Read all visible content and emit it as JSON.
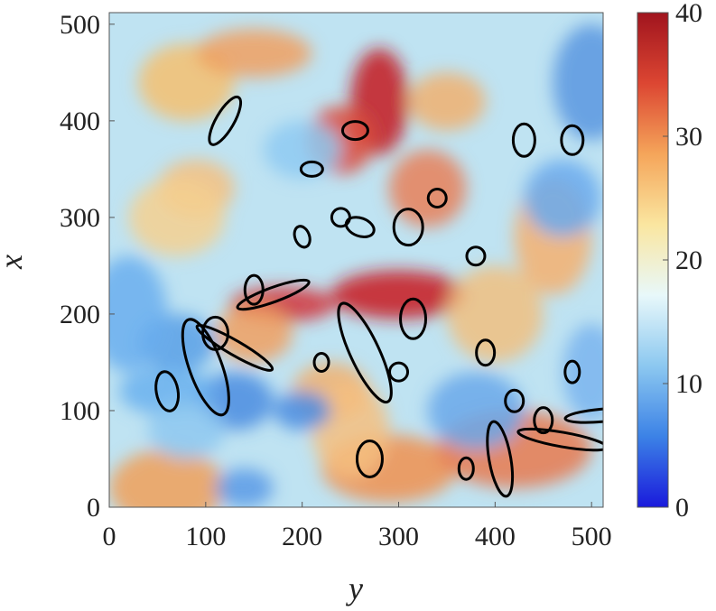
{
  "chart_data": {
    "type": "heatmap",
    "title": "",
    "xlabel": "y",
    "ylabel": "x",
    "xlim": [
      0,
      512
    ],
    "ylim": [
      0,
      512
    ],
    "x_ticks": [
      0,
      100,
      200,
      300,
      400,
      500
    ],
    "y_ticks": [
      0,
      100,
      200,
      300,
      400,
      500
    ],
    "colorbar": {
      "min": 0,
      "max": 40,
      "ticks": [
        0,
        10,
        20,
        30,
        40
      ],
      "colormap": [
        "#1a1adc",
        "#3c82e6",
        "#8cc8f0",
        "#e8f8fa",
        "#fae6a0",
        "#f5a55a",
        "#dc4632",
        "#a0141e"
      ]
    },
    "overlay": "black closed contour lines",
    "grid": false
  }
}
